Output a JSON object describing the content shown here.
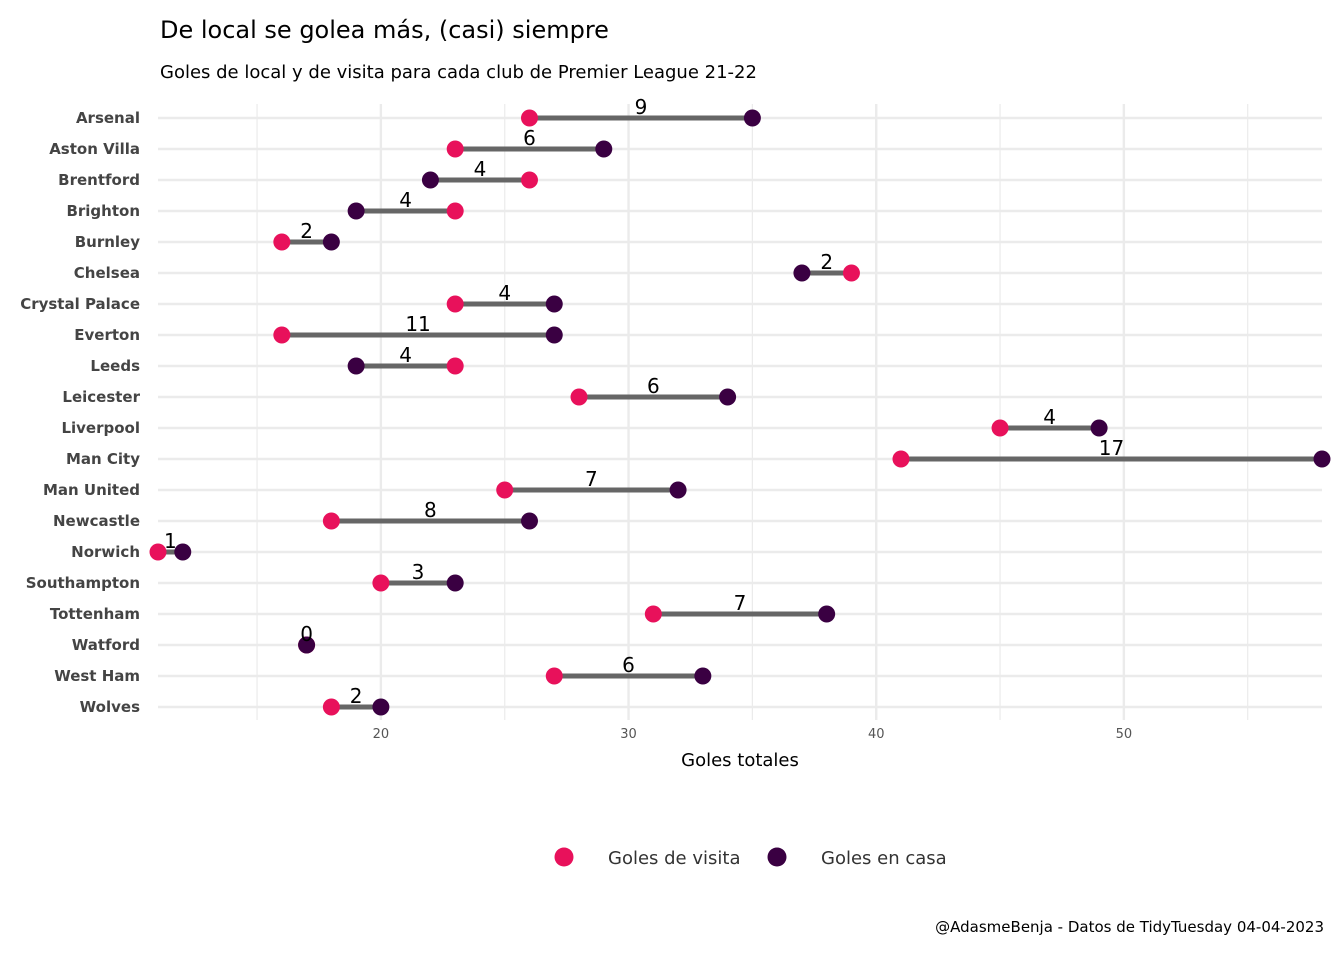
{
  "chart_data": {
    "type": "dumbbell",
    "title": "De local se golea más, (casi) siempre",
    "subtitle": "Goles de local y de visita para cada club de Premier League 21-22",
    "xlabel": "Goles totales",
    "xlim": [
      11,
      58
    ],
    "xticks": [
      20,
      30,
      40,
      50
    ],
    "legend_position": "bottom",
    "caption": "@AdasmeBenja - Datos de TidyTuesday 04-04-2023",
    "colors": {
      "away": "#E8115B",
      "home": "#3A0042",
      "segment": "#666666",
      "grid": "#EBEBEB"
    },
    "series_names": {
      "away": "Goles de visita",
      "home": "Goles en casa"
    },
    "categories": [
      "Arsenal",
      "Aston Villa",
      "Brentford",
      "Brighton",
      "Burnley",
      "Chelsea",
      "Crystal Palace",
      "Everton",
      "Leeds",
      "Leicester",
      "Liverpool",
      "Man City",
      "Man United",
      "Newcastle",
      "Norwich",
      "Southampton",
      "Tottenham",
      "Watford",
      "West Ham",
      "Wolves"
    ],
    "away": [
      26,
      23,
      26,
      23,
      16,
      39,
      23,
      16,
      23,
      28,
      45,
      41,
      25,
      18,
      11,
      20,
      31,
      17,
      27,
      18
    ],
    "home": [
      35,
      29,
      22,
      19,
      18,
      37,
      27,
      27,
      19,
      34,
      49,
      58,
      32,
      26,
      12,
      23,
      38,
      17,
      33,
      20
    ],
    "differences": [
      9,
      6,
      4,
      4,
      2,
      2,
      4,
      11,
      4,
      6,
      4,
      17,
      7,
      8,
      1,
      3,
      7,
      0,
      6,
      2
    ]
  }
}
